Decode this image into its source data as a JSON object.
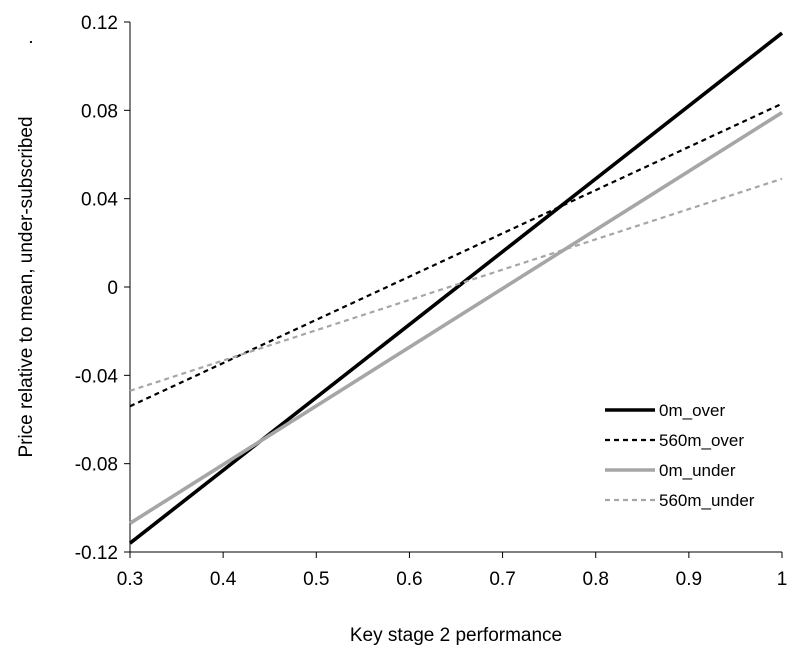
{
  "chart_data": {
    "type": "line",
    "title": "",
    "xlabel": "Key stage 2 performance",
    "ylabel": "Price relative to mean, under-subscribed",
    "ylabel_suffix": ".",
    "xlim": [
      0.3,
      1.0
    ],
    "ylim": [
      -0.12,
      0.12
    ],
    "x_ticks": [
      0.3,
      0.4,
      0.5,
      0.6,
      0.7,
      0.8,
      0.9,
      1.0
    ],
    "x_tick_labels": [
      "0.3",
      "0.4",
      "0.5",
      "0.6",
      "0.7",
      "0.8",
      "0.9",
      "1"
    ],
    "y_ticks": [
      -0.12,
      -0.08,
      -0.04,
      0,
      0.04,
      0.08,
      0.12
    ],
    "y_tick_labels": [
      "-0.12",
      "-0.08",
      "-0.04",
      "0",
      "0.04",
      "0.08",
      "0.12"
    ],
    "grid": false,
    "legend_position": "bottom-right",
    "series": [
      {
        "name": "0m_over",
        "x": [
          0.3,
          1.0
        ],
        "y": [
          -0.116,
          0.115
        ],
        "color": "#000000",
        "dashed": false
      },
      {
        "name": "560m_over",
        "x": [
          0.3,
          1.0
        ],
        "y": [
          -0.054,
          0.083
        ],
        "color": "#000000",
        "dashed": true
      },
      {
        "name": "0m_under",
        "x": [
          0.3,
          1.0
        ],
        "y": [
          -0.107,
          0.079
        ],
        "color": "#a6a6a6",
        "dashed": false
      },
      {
        "name": "560m_under",
        "x": [
          0.3,
          1.0
        ],
        "y": [
          -0.047,
          0.049
        ],
        "color": "#a6a6a6",
        "dashed": true
      }
    ]
  }
}
